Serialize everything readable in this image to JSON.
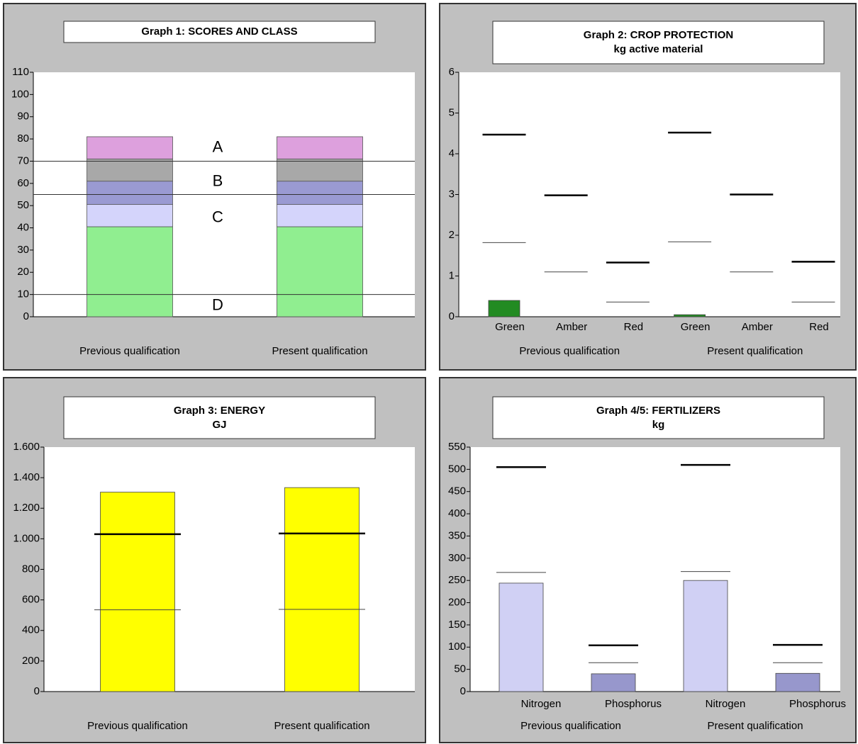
{
  "chart_data": [
    {
      "type": "stacked_bar",
      "title": "Graph 1: SCORES AND CLASS",
      "categories": [
        "Previous qualification",
        "Present qualification"
      ],
      "series": [
        {
          "color": "#90ee90",
          "values": [
            40.5,
            40.5
          ]
        },
        {
          "color": "#d4d4fb",
          "values": [
            10,
            10
          ]
        },
        {
          "color": "#9a9ad2",
          "values": [
            10.5,
            10.5
          ]
        },
        {
          "color": "#a8a8a8",
          "values": [
            10,
            10
          ]
        },
        {
          "color": "#dda0dd",
          "values": [
            10,
            10
          ]
        }
      ],
      "class_lines": [
        70,
        55,
        10
      ],
      "class_labels": [
        "A",
        "B",
        "C",
        "D"
      ],
      "ylim": [
        0,
        110
      ],
      "yticks": [
        0,
        10,
        20,
        30,
        40,
        50,
        60,
        70,
        80,
        90,
        100,
        110
      ]
    },
    {
      "type": "norm_bar",
      "title": "Graph 2: CROP PROTECTION",
      "subtitle": "kg active material",
      "categories": [
        "Green",
        "Amber",
        "Red",
        "Green",
        "Amber",
        "Red"
      ],
      "groups": [
        "Previous qualification",
        "Present qualification"
      ],
      "series": [
        {
          "colors": [
            "#228b22",
            "#228b22",
            "#228b22",
            "#228b22",
            "#228b22",
            "#228b22"
          ],
          "values": [
            0.4,
            0,
            0,
            0.05,
            0,
            0
          ]
        }
      ],
      "upper_norm": [
        4.47,
        2.98,
        1.33,
        4.52,
        3.0,
        1.35
      ],
      "lower_norm": [
        1.82,
        1.1,
        0.36,
        1.84,
        1.1,
        0.36
      ],
      "ylim": [
        0,
        6
      ],
      "yticks": [
        0,
        1,
        2,
        3,
        4,
        5,
        6
      ]
    },
    {
      "type": "norm_bar",
      "title": "Graph 3: ENERGY",
      "subtitle": "GJ",
      "categories": [
        "Previous qualification",
        "Present qualification"
      ],
      "series": [
        {
          "colors": [
            "#ffff00",
            "#ffff00"
          ],
          "values": [
            1305,
            1335
          ]
        }
      ],
      "upper_norm": [
        1030,
        1035
      ],
      "lower_norm": [
        535,
        538
      ],
      "ylim": [
        0,
        1600
      ],
      "yticks": [
        0,
        200,
        400,
        600,
        800,
        {
          "value": 1000,
          "label": "1.000"
        },
        {
          "value": 1200,
          "label": "1.200"
        },
        {
          "value": 1400,
          "label": "1.400"
        },
        {
          "value": 1600,
          "label": "1.600"
        }
      ]
    },
    {
      "type": "norm_bar",
      "title": "Graph 4/5: FERTILIZERS",
      "subtitle": "kg",
      "categories": [
        "Nitrogen",
        "Phosphorus",
        "Nitrogen",
        "Phosphorus"
      ],
      "groups": [
        "Previous qualification",
        "Present qualification"
      ],
      "series": [
        {
          "colors": [
            "#d0d0f4",
            "#9797cc",
            "#d0d0f4",
            "#9797cc"
          ],
          "values": [
            244,
            40,
            250,
            41
          ]
        }
      ],
      "upper_norm": [
        505,
        104,
        510,
        105
      ],
      "lower_norm": [
        268,
        65,
        270,
        65
      ],
      "ylim": [
        0,
        550
      ],
      "yticks": [
        0,
        50,
        100,
        150,
        200,
        250,
        300,
        350,
        400,
        450,
        500,
        550
      ]
    }
  ]
}
